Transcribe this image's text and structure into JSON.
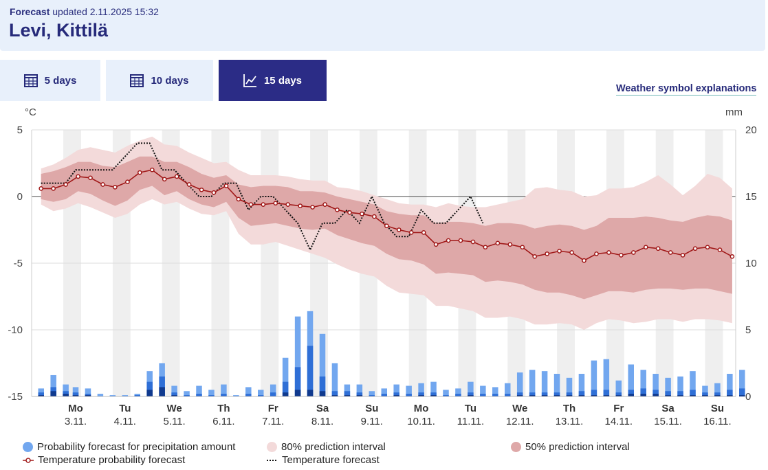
{
  "header": {
    "updated_label": "Forecast",
    "updated_text": "updated 2.11.2025 15:32",
    "location": "Levi, Kittilä"
  },
  "tabs": [
    {
      "label": "5 days",
      "icon": "calendar-icon",
      "active": false
    },
    {
      "label": "10 days",
      "icon": "calendar-icon",
      "active": false
    },
    {
      "label": "15 days",
      "icon": "line-chart-icon",
      "active": true
    }
  ],
  "symbol_link": "Weather symbol explanations",
  "legend": {
    "precip": "Probability forecast for precipitation amount",
    "pi80": "80% prediction interval",
    "pi50": "50% prediction interval",
    "temp_prob": "Temperature probability forecast",
    "temp_fc": "Temperature forecast"
  },
  "colors": {
    "precip_light": "#72a7ef",
    "precip_mid": "#2f6fd6",
    "precip_dark": "#103a8e",
    "pi80": "#f3dada",
    "pi50": "#dea8a8",
    "temp_line": "#a01818",
    "band": "#efefef",
    "title": "#262a7a"
  },
  "chart_data": {
    "type": "line",
    "title": "",
    "ylabel_left": "°C",
    "ylabel_right": "mm",
    "ylim_left": [
      -15,
      5
    ],
    "yticks_left": [
      5,
      0,
      -5,
      -10,
      -15
    ],
    "ylim_right": [
      0,
      20
    ],
    "yticks_right": [
      20,
      15,
      10,
      5,
      0
    ],
    "days": [
      {
        "day": "Mo",
        "date": "3.11."
      },
      {
        "day": "Tu",
        "date": "4.11."
      },
      {
        "day": "We",
        "date": "5.11."
      },
      {
        "day": "Th",
        "date": "6.11."
      },
      {
        "day": "Fr",
        "date": "7.11."
      },
      {
        "day": "Sa",
        "date": "8.11."
      },
      {
        "day": "Su",
        "date": "9.11."
      },
      {
        "day": "Mo",
        "date": "10.11."
      },
      {
        "day": "Tu",
        "date": "11.11."
      },
      {
        "day": "We",
        "date": "12.11."
      },
      {
        "day": "Th",
        "date": "13.11."
      },
      {
        "day": "Fr",
        "date": "14.11."
      },
      {
        "day": "Sa",
        "date": "15.11."
      },
      {
        "day": "Su",
        "date": "16.11."
      }
    ],
    "x_start_day": -0.7,
    "x_end_day": 13.4,
    "temp_prob_step_days": 0.25,
    "temp_prob_start_day": -0.7,
    "temp_prob_median": [
      0.6,
      0.6,
      0.9,
      1.5,
      1.4,
      0.9,
      0.7,
      1.1,
      1.8,
      2.0,
      1.3,
      1.5,
      0.9,
      0.5,
      0.3,
      0.8,
      -0.2,
      -0.6,
      -0.6,
      -0.5,
      -0.6,
      -0.7,
      -0.8,
      -0.6,
      -1.0,
      -1.2,
      -1.3,
      -1.5,
      -2.2,
      -2.5,
      -2.7,
      -2.7,
      -3.6,
      -3.3,
      -3.3,
      -3.4,
      -3.8,
      -3.5,
      -3.6,
      -3.8,
      -4.5,
      -4.3,
      -4.1,
      -4.2,
      -4.8,
      -4.3,
      -4.2,
      -4.4,
      -4.2,
      -3.8,
      -3.9,
      -4.2,
      -4.4,
      -3.9,
      -3.8,
      -4.0,
      -4.5
    ],
    "pi50_upper": [
      1.7,
      1.9,
      2.2,
      2.6,
      2.6,
      2.3,
      2.2,
      2.6,
      3.0,
      3.0,
      2.6,
      2.6,
      2.2,
      1.7,
      1.4,
      1.6,
      0.9,
      0.7,
      0.8,
      0.8,
      0.7,
      0.4,
      0.4,
      0.3,
      0.0,
      -0.2,
      -0.4,
      -0.6,
      -1.1,
      -1.3,
      -1.4,
      -1.4,
      -2.0,
      -1.9,
      -1.9,
      -2.0,
      -2.2,
      -2.0,
      -2.0,
      -2.1,
      -2.4,
      -2.2,
      -2.1,
      -2.2,
      -2.5,
      -2.2,
      -1.6,
      -1.6,
      -1.6,
      -1.5,
      -1.6,
      -1.8,
      -1.9,
      -1.6,
      -1.4,
      -1.5,
      -1.8
    ],
    "pi50_lower": [
      -0.2,
      -0.4,
      -0.2,
      0.4,
      0.2,
      -0.3,
      -0.7,
      -0.3,
      0.5,
      0.8,
      0.1,
      0.4,
      -0.2,
      -0.6,
      -0.8,
      -0.4,
      -1.6,
      -2.2,
      -2.1,
      -2.0,
      -2.2,
      -2.4,
      -2.5,
      -2.4,
      -2.9,
      -3.2,
      -3.5,
      -3.7,
      -4.3,
      -4.7,
      -4.8,
      -5.1,
      -5.8,
      -5.7,
      -5.8,
      -5.9,
      -6.4,
      -6.3,
      -6.4,
      -6.6,
      -7.0,
      -7.2,
      -7.2,
      -7.4,
      -7.7,
      -7.4,
      -7.1,
      -7.1,
      -7.2,
      -7.0,
      -6.9,
      -6.9,
      -7.0,
      -6.9,
      -6.9,
      -7.1,
      -7.3
    ],
    "pi80_upper": [
      2.1,
      2.4,
      2.9,
      3.5,
      3.7,
      3.5,
      3.3,
      3.8,
      4.2,
      4.5,
      3.9,
      3.8,
      3.3,
      2.9,
      2.5,
      2.6,
      2.0,
      1.6,
      1.6,
      1.6,
      1.5,
      1.3,
      1.2,
      1.2,
      0.7,
      0.6,
      0.4,
      0.1,
      -0.2,
      -0.5,
      -0.6,
      -0.6,
      -0.8,
      -0.5,
      -0.7,
      -0.8,
      -0.8,
      -0.6,
      -0.4,
      -0.2,
      0.6,
      0.7,
      0.5,
      0.4,
      0.0,
      0.1,
      0.6,
      0.6,
      0.7,
      1.1,
      1.6,
      0.9,
      0.1,
      0.8,
      1.7,
      1.4,
      0.6
    ],
    "pi80_lower": [
      -0.6,
      -1.1,
      -0.9,
      -0.5,
      -0.8,
      -1.2,
      -1.6,
      -1.3,
      -0.6,
      -0.2,
      -0.6,
      -0.4,
      -0.9,
      -1.3,
      -1.4,
      -1.1,
      -2.8,
      -3.6,
      -3.6,
      -3.4,
      -3.7,
      -4.0,
      -4.3,
      -4.6,
      -5.1,
      -5.5,
      -5.8,
      -6.0,
      -6.7,
      -7.2,
      -7.3,
      -7.4,
      -8.2,
      -8.2,
      -8.4,
      -8.6,
      -9.1,
      -9.1,
      -9.0,
      -9.2,
      -9.6,
      -9.6,
      -9.5,
      -9.6,
      -10.0,
      -9.5,
      -9.2,
      -9.3,
      -9.5,
      -9.4,
      -9.2,
      -9.2,
      -9.4,
      -9.2,
      -9.2,
      -9.3,
      -9.5
    ],
    "temp_forecast_x_days": [
      -0.7,
      -0.45,
      -0.2,
      0.0,
      0.5,
      0.75,
      1.0,
      1.25,
      1.5,
      1.75,
      2.0,
      2.25,
      2.5,
      2.75,
      3.0,
      3.25,
      3.5,
      3.75,
      4.0,
      4.25,
      4.5,
      4.75,
      5.0,
      5.25,
      5.5,
      5.75,
      6.0,
      6.25,
      6.5,
      6.75,
      7.0,
      7.25,
      7.5,
      7.75,
      8.0,
      8.25
    ],
    "temp_forecast": [
      1.0,
      1.0,
      1.0,
      2.0,
      2.0,
      2.0,
      3.0,
      4.0,
      4.0,
      2.0,
      2.0,
      1.0,
      0.0,
      0.0,
      1.0,
      1.0,
      -1.0,
      0.0,
      0.0,
      -1.0,
      -2.0,
      -4.0,
      -2.0,
      -2.0,
      -1.0,
      -2.0,
      0.0,
      -2.0,
      -3.0,
      -3.0,
      -1.0,
      -2.0,
      -2.0,
      -1.0,
      0.0,
      -2.0
    ],
    "precip_x_days": [
      -0.7,
      -0.45,
      -0.2,
      0.0,
      0.25,
      0.5,
      0.75,
      1.0,
      1.25,
      1.5,
      1.75,
      2.0,
      2.25,
      2.5,
      2.75,
      3.0,
      3.25,
      3.5,
      3.75,
      4.0,
      4.25,
      4.5,
      4.75,
      5.0,
      5.25,
      5.5,
      5.75,
      6.0,
      6.25,
      6.5,
      6.75,
      7.0,
      7.25,
      7.5,
      7.75,
      8.0,
      8.25,
      8.5,
      8.75,
      9.0,
      9.25,
      9.5,
      9.75,
      10.0,
      10.25,
      10.5,
      10.75,
      11.0,
      11.25,
      11.5,
      11.75,
      12.0,
      12.25,
      12.5,
      12.75,
      13.0,
      13.25,
      13.5
    ],
    "precip_p90": [
      0.6,
      1.6,
      0.9,
      0.7,
      0.6,
      0.2,
      0.1,
      0.1,
      0.2,
      1.9,
      2.5,
      0.8,
      0.4,
      0.8,
      0.5,
      0.9,
      0.1,
      0.7,
      0.5,
      0.9,
      2.9,
      6.0,
      6.4,
      4.7,
      2.5,
      0.9,
      0.9,
      0.4,
      0.6,
      0.9,
      0.8,
      1.0,
      1.1,
      0.5,
      0.6,
      1.1,
      0.8,
      0.7,
      1.0,
      1.8,
      2.0,
      1.9,
      1.7,
      1.4,
      1.7,
      2.7,
      2.8,
      1.2,
      2.4,
      2.0,
      1.7,
      1.4,
      1.5,
      1.9,
      0.8,
      1.0,
      1.7,
      2.0
    ],
    "precip_p50": [
      0.3,
      0.7,
      0.4,
      0.3,
      0.2,
      0.0,
      0.0,
      0.0,
      0.1,
      1.1,
      1.5,
      0.3,
      0.1,
      0.2,
      0.1,
      0.2,
      0.0,
      0.2,
      0.1,
      0.3,
      1.1,
      2.2,
      3.8,
      1.5,
      0.4,
      0.4,
      0.3,
      0.1,
      0.2,
      0.3,
      0.2,
      0.3,
      0.3,
      0.1,
      0.2,
      0.3,
      0.2,
      0.2,
      0.2,
      0.3,
      0.3,
      0.3,
      0.3,
      0.3,
      0.4,
      0.5,
      0.5,
      0.3,
      0.5,
      0.6,
      0.5,
      0.4,
      0.4,
      0.5,
      0.3,
      0.3,
      0.5,
      0.6
    ],
    "precip_p10": [
      0.1,
      0.4,
      0.2,
      0.1,
      0.1,
      0.0,
      0.0,
      0.0,
      0.0,
      0.5,
      0.7,
      0.1,
      0.0,
      0.0,
      0.0,
      0.0,
      0.0,
      0.0,
      0.0,
      0.0,
      0.3,
      0.5,
      0.5,
      0.4,
      0.1,
      0.1,
      0.1,
      0.0,
      0.0,
      0.1,
      0.0,
      0.1,
      0.1,
      0.0,
      0.0,
      0.1,
      0.0,
      0.0,
      0.0,
      0.1,
      0.1,
      0.1,
      0.1,
      0.1,
      0.1,
      0.1,
      0.1,
      0.1,
      0.2,
      0.2,
      0.2,
      0.1,
      0.1,
      0.1,
      0.1,
      0.1,
      0.1,
      0.1
    ]
  }
}
